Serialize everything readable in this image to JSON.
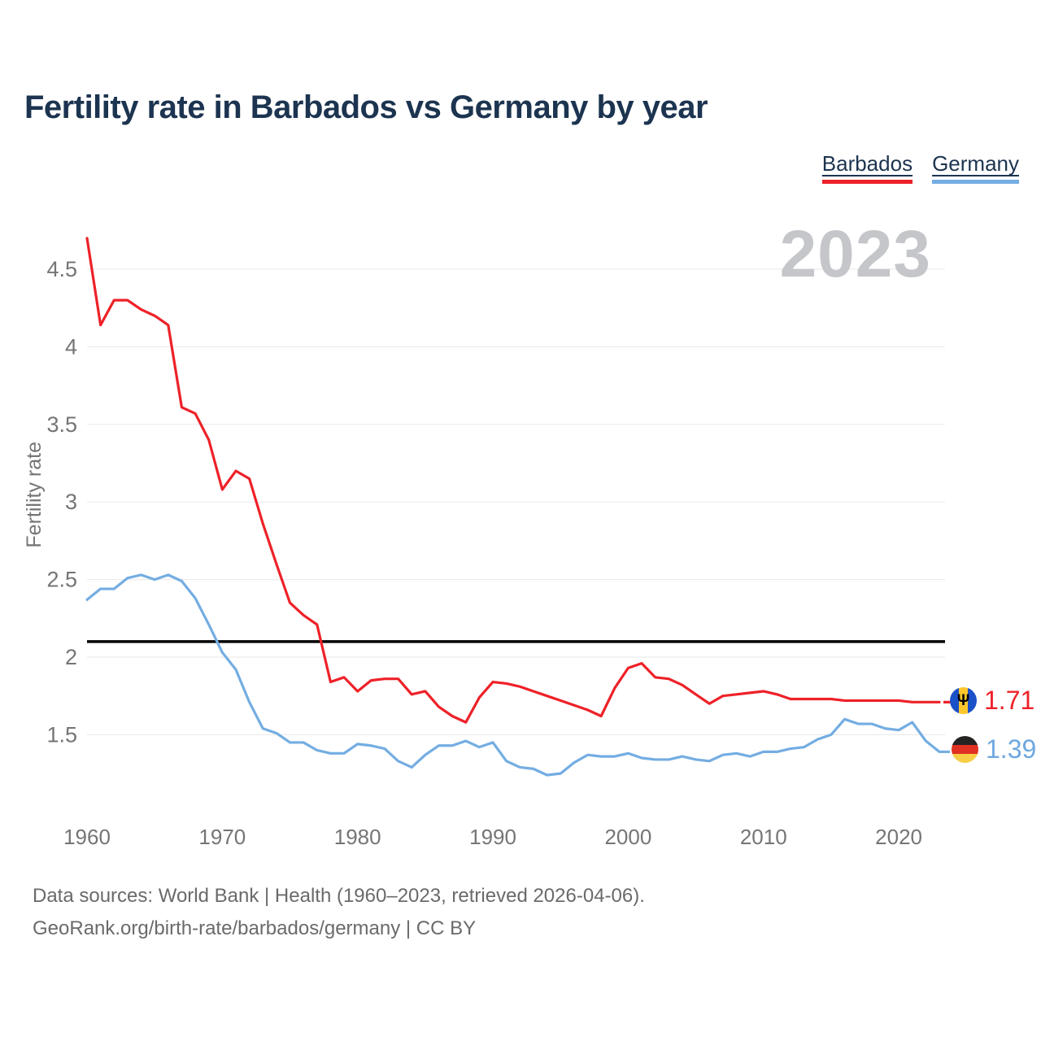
{
  "title": "Fertility rate in Barbados vs Germany by year",
  "watermark": "2023",
  "legend": [
    {
      "label": "Barbados",
      "color": "#ee2128"
    },
    {
      "label": "Germany",
      "color": "#74ade2"
    }
  ],
  "end_labels": [
    {
      "series": "Barbados",
      "value": "1.71",
      "flag": "barbados-flag",
      "flag_glyph": "Ψ"
    },
    {
      "series": "Germany",
      "value": "1.39",
      "flag": "germany-flag",
      "flag_glyph": ""
    }
  ],
  "footer": {
    "line1": "Data sources: World Bank | Health (1960–2023, retrieved 2026-04-06).",
    "line2": "GeoRank.org/birth-rate/barbados/germany | CC BY"
  },
  "chart_data": {
    "type": "line",
    "title": "Fertility rate in Barbados vs Germany by year",
    "xlabel": "",
    "ylabel": "Fertility rate",
    "x": [
      1960,
      1961,
      1962,
      1963,
      1964,
      1965,
      1966,
      1967,
      1968,
      1969,
      1970,
      1971,
      1972,
      1973,
      1974,
      1975,
      1976,
      1977,
      1978,
      1979,
      1980,
      1981,
      1982,
      1983,
      1984,
      1985,
      1986,
      1987,
      1988,
      1989,
      1990,
      1991,
      1992,
      1993,
      1994,
      1995,
      1996,
      1997,
      1998,
      1999,
      2000,
      2001,
      2002,
      2003,
      2004,
      2005,
      2006,
      2007,
      2008,
      2009,
      2010,
      2011,
      2012,
      2013,
      2014,
      2015,
      2016,
      2017,
      2018,
      2019,
      2020,
      2021,
      2022,
      2023
    ],
    "series": [
      {
        "name": "Barbados",
        "color": "#ee2128",
        "values": [
          4.7,
          4.14,
          4.3,
          4.3,
          4.24,
          4.2,
          4.14,
          3.61,
          3.57,
          3.4,
          3.08,
          3.2,
          3.15,
          2.86,
          2.6,
          2.35,
          2.27,
          2.21,
          1.84,
          1.87,
          1.78,
          1.85,
          1.86,
          1.86,
          1.76,
          1.78,
          1.68,
          1.62,
          1.58,
          1.74,
          1.84,
          1.83,
          1.81,
          1.78,
          1.75,
          1.72,
          1.69,
          1.66,
          1.62,
          1.8,
          1.93,
          1.96,
          1.87,
          1.86,
          1.82,
          1.76,
          1.7,
          1.75,
          1.76,
          1.77,
          1.78,
          1.76,
          1.73,
          1.73,
          1.73,
          1.73,
          1.72,
          1.72,
          1.72,
          1.72,
          1.72,
          1.71,
          1.71,
          1.71
        ]
      },
      {
        "name": "Germany",
        "color": "#74ade2",
        "values": [
          2.37,
          2.44,
          2.44,
          2.51,
          2.53,
          2.5,
          2.53,
          2.49,
          2.38,
          2.21,
          2.03,
          1.92,
          1.71,
          1.54,
          1.51,
          1.45,
          1.45,
          1.4,
          1.38,
          1.38,
          1.44,
          1.43,
          1.41,
          1.33,
          1.29,
          1.37,
          1.43,
          1.43,
          1.46,
          1.42,
          1.45,
          1.33,
          1.29,
          1.28,
          1.24,
          1.25,
          1.32,
          1.37,
          1.36,
          1.36,
          1.38,
          1.35,
          1.34,
          1.34,
          1.36,
          1.34,
          1.33,
          1.37,
          1.38,
          1.36,
          1.39,
          1.39,
          1.41,
          1.42,
          1.47,
          1.5,
          1.6,
          1.57,
          1.57,
          1.54,
          1.53,
          1.58,
          1.46,
          1.39
        ]
      }
    ],
    "yticks": [
      4.5,
      4,
      3.5,
      3,
      2.5,
      2,
      1.5
    ],
    "xticks": [
      1960,
      1970,
      1980,
      1990,
      2000,
      2010,
      2020
    ],
    "ylim": [
      1.1,
      4.8
    ],
    "xlim": [
      1960,
      2023
    ],
    "reference_line": 2.1,
    "grid": true,
    "legend_position": "top-right",
    "grid_color": "#ececee",
    "axis_text_color": "#757575",
    "reference_line_color": "#000000"
  }
}
